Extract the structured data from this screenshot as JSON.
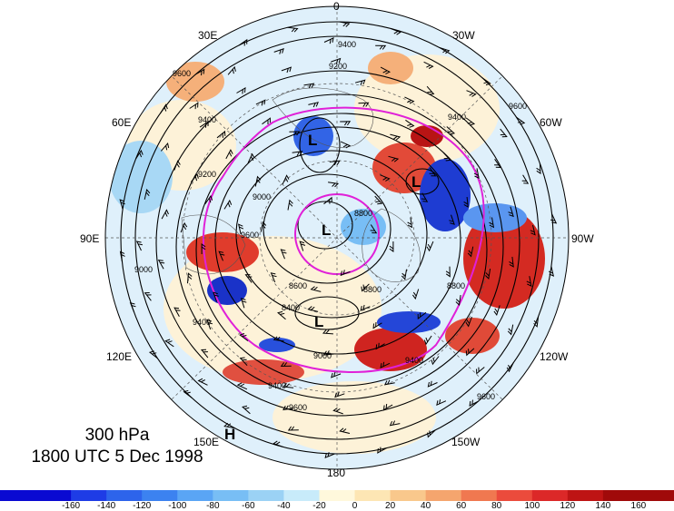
{
  "map": {
    "level_label": "300 hPa",
    "time_label": "1800 UTC 5 Dec 1998",
    "longitude_labels": [
      {
        "id": "lon-0",
        "text": "0"
      },
      {
        "id": "lon-30w",
        "text": "30W"
      },
      {
        "id": "lon-60w",
        "text": "60W"
      },
      {
        "id": "lon-90w",
        "text": "90W"
      },
      {
        "id": "lon-120w",
        "text": "120W"
      },
      {
        "id": "lon-150w",
        "text": "150W"
      },
      {
        "id": "lon-180",
        "text": "180"
      },
      {
        "id": "lon-150e",
        "text": "150E"
      },
      {
        "id": "lon-120e",
        "text": "120E"
      },
      {
        "id": "lon-90e",
        "text": "90E"
      },
      {
        "id": "lon-60e",
        "text": "60E"
      },
      {
        "id": "lon-30e",
        "text": "30E"
      }
    ],
    "contour_labels": [
      "9400",
      "9200",
      "9600",
      "9400",
      "9600",
      "9200",
      "9000",
      "9400",
      "8800",
      "9000",
      "9600",
      "9400",
      "8600",
      "8400",
      "8800",
      "8800",
      "9000",
      "9400",
      "9600",
      "9600",
      "9400"
    ],
    "pressure_centers": [
      {
        "id": "low-1",
        "text": "L"
      },
      {
        "id": "low-2",
        "text": "L"
      },
      {
        "id": "low-3",
        "text": "L"
      },
      {
        "id": "low-4",
        "text": "L"
      },
      {
        "id": "high-1",
        "text": "H"
      }
    ]
  },
  "colorbar": {
    "tick_labels": [
      "-160",
      "-140",
      "-120",
      "-100",
      "-80",
      "-60",
      "-40",
      "-20",
      "0",
      "20",
      "40",
      "60",
      "80",
      "100",
      "120",
      "140",
      "160"
    ],
    "colors": [
      "#0a0ad2",
      "#1e3ce6",
      "#2d64eb",
      "#3c82f0",
      "#5aa5f5",
      "#78bef5",
      "#9bd2f5",
      "#c8ebfa",
      "#fff8dc",
      "#fde6b4",
      "#f9c88c",
      "#f5a56e",
      "#f07850",
      "#eb4b3c",
      "#dc2828",
      "#be1414",
      "#a00a0a"
    ]
  }
}
